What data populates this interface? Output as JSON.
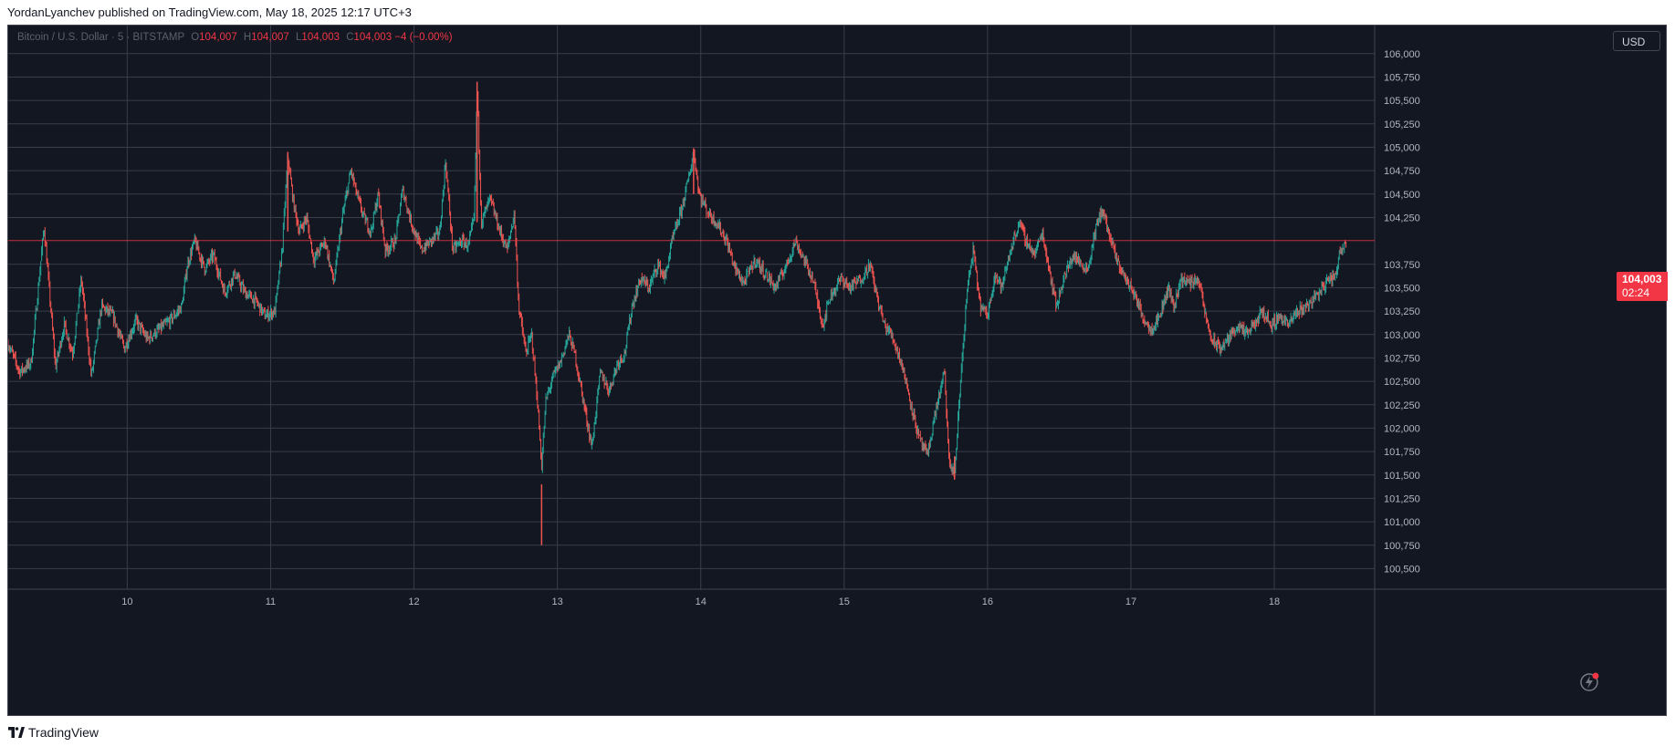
{
  "header": {
    "published_text": "YordanLyanchev published on TradingView.com, May 18, 2025 12:17 UTC+3"
  },
  "legend": {
    "symbol": "Bitcoin / U.S. Dollar · 5 · BITSTAMP",
    "open_key": "O",
    "open": "104,007",
    "high_key": "H",
    "high": "104,007",
    "low_key": "L",
    "low": "104,003",
    "close_key": "C",
    "close": "104,003",
    "change": "−4 (−0.00%)"
  },
  "currency_button": "USD",
  "last_price_tag": {
    "price": "104,003",
    "countdown": "02:24"
  },
  "footer": {
    "brand": "TradingView",
    "logo_icon": "tradingview-logo-icon"
  },
  "icons": {
    "bolt": "lightning-bolt-icon"
  },
  "colors": {
    "background": "#131722",
    "up": "#26a69a",
    "down": "#ef5350",
    "grid": "#3a3e4a",
    "price_line": "#f23645",
    "text": "#b2b5be"
  },
  "chart_data": {
    "type": "candlestick",
    "title": "Bitcoin / U.S. Dollar · 5 · BITSTAMP",
    "xlabel": "",
    "ylabel": "",
    "x_ticks": [
      "10",
      "11",
      "12",
      "13",
      "14",
      "15",
      "16",
      "17",
      "18"
    ],
    "x_tick_days": [
      10,
      11,
      12,
      13,
      14,
      15,
      16,
      17,
      18
    ],
    "y_ticks": [
      "106,000",
      "105,750",
      "105,500",
      "105,250",
      "105,000",
      "104,750",
      "104,500",
      "104,250",
      "103,750",
      "103,500",
      "103,250",
      "103,000",
      "102,750",
      "102,500",
      "102,250",
      "102,000",
      "101,750",
      "101,500",
      "101,250",
      "101,000",
      "100,750",
      "100,500"
    ],
    "y_tick_values": [
      106000,
      105750,
      105500,
      105250,
      105000,
      104750,
      104500,
      104250,
      103750,
      103500,
      103250,
      103000,
      102750,
      102500,
      102250,
      102000,
      101750,
      101500,
      101250,
      101000,
      100750,
      100500
    ],
    "xlim": [
      9.17,
      18.7
    ],
    "ylim": [
      100280,
      106300
    ],
    "last_price": 104003,
    "grid": true,
    "price_path": [
      [
        9.17,
        102900
      ],
      [
        9.25,
        102600
      ],
      [
        9.33,
        102700
      ],
      [
        9.42,
        104150
      ],
      [
        9.5,
        102650
      ],
      [
        9.56,
        103100
      ],
      [
        9.62,
        102800
      ],
      [
        9.68,
        103600
      ],
      [
        9.75,
        102550
      ],
      [
        9.82,
        103300
      ],
      [
        9.9,
        103200
      ],
      [
        9.98,
        102850
      ],
      [
        10.06,
        103150
      ],
      [
        10.14,
        102950
      ],
      [
        10.22,
        103050
      ],
      [
        10.3,
        103150
      ],
      [
        10.38,
        103300
      ],
      [
        10.42,
        103750
      ],
      [
        10.47,
        104000
      ],
      [
        10.54,
        103700
      ],
      [
        10.6,
        103850
      ],
      [
        10.68,
        103450
      ],
      [
        10.75,
        103650
      ],
      [
        10.82,
        103450
      ],
      [
        10.9,
        103350
      ],
      [
        10.96,
        103200
      ],
      [
        11.03,
        103250
      ],
      [
        11.08,
        103900
      ],
      [
        11.12,
        104900
      ],
      [
        11.16,
        104400
      ],
      [
        11.2,
        104100
      ],
      [
        11.25,
        104250
      ],
      [
        11.3,
        103800
      ],
      [
        11.38,
        104000
      ],
      [
        11.44,
        103550
      ],
      [
        11.5,
        104250
      ],
      [
        11.56,
        104750
      ],
      [
        11.6,
        104500
      ],
      [
        11.65,
        104250
      ],
      [
        11.7,
        104100
      ],
      [
        11.75,
        104500
      ],
      [
        11.8,
        103900
      ],
      [
        11.87,
        104000
      ],
      [
        11.92,
        104550
      ],
      [
        11.98,
        104200
      ],
      [
        12.05,
        103900
      ],
      [
        12.12,
        104000
      ],
      [
        12.18,
        104100
      ],
      [
        12.22,
        104850
      ],
      [
        12.27,
        103900
      ],
      [
        12.33,
        104000
      ],
      [
        12.38,
        103950
      ],
      [
        12.42,
        104250
      ],
      [
        12.44,
        105650
      ],
      [
        12.47,
        104200
      ],
      [
        12.53,
        104450
      ],
      [
        12.6,
        104100
      ],
      [
        12.65,
        103900
      ],
      [
        12.7,
        104300
      ],
      [
        12.73,
        103300
      ],
      [
        12.78,
        102800
      ],
      [
        12.82,
        103000
      ],
      [
        12.86,
        102300
      ],
      [
        12.89,
        101600
      ],
      [
        12.92,
        102300
      ],
      [
        12.97,
        102550
      ],
      [
        13.02,
        102700
      ],
      [
        13.08,
        103000
      ],
      [
        13.12,
        102800
      ],
      [
        13.18,
        102300
      ],
      [
        13.24,
        101800
      ],
      [
        13.3,
        102600
      ],
      [
        13.36,
        102400
      ],
      [
        13.42,
        102700
      ],
      [
        13.47,
        102800
      ],
      [
        13.52,
        103300
      ],
      [
        13.58,
        103600
      ],
      [
        13.64,
        103500
      ],
      [
        13.7,
        103750
      ],
      [
        13.75,
        103600
      ],
      [
        13.8,
        104000
      ],
      [
        13.86,
        104300
      ],
      [
        13.92,
        104700
      ],
      [
        13.95,
        104950
      ],
      [
        13.99,
        104500
      ],
      [
        14.05,
        104300
      ],
      [
        14.11,
        104200
      ],
      [
        14.18,
        104000
      ],
      [
        14.24,
        103700
      ],
      [
        14.3,
        103550
      ],
      [
        14.38,
        103800
      ],
      [
        14.45,
        103650
      ],
      [
        14.52,
        103500
      ],
      [
        14.6,
        103750
      ],
      [
        14.66,
        104000
      ],
      [
        14.72,
        103800
      ],
      [
        14.78,
        103600
      ],
      [
        14.85,
        103100
      ],
      [
        14.9,
        103400
      ],
      [
        14.98,
        103600
      ],
      [
        15.04,
        103500
      ],
      [
        15.12,
        103600
      ],
      [
        15.18,
        103750
      ],
      [
        15.23,
        103400
      ],
      [
        15.28,
        103100
      ],
      [
        15.33,
        103000
      ],
      [
        15.4,
        102700
      ],
      [
        15.46,
        102300
      ],
      [
        15.52,
        101900
      ],
      [
        15.58,
        101700
      ],
      [
        15.64,
        102200
      ],
      [
        15.7,
        102600
      ],
      [
        15.73,
        101650
      ],
      [
        15.77,
        101500
      ],
      [
        15.82,
        102700
      ],
      [
        15.86,
        103500
      ],
      [
        15.9,
        103900
      ],
      [
        15.95,
        103300
      ],
      [
        16.0,
        103200
      ],
      [
        16.05,
        103650
      ],
      [
        16.1,
        103500
      ],
      [
        16.16,
        103900
      ],
      [
        16.22,
        104200
      ],
      [
        16.27,
        104000
      ],
      [
        16.33,
        103850
      ],
      [
        16.38,
        104100
      ],
      [
        16.43,
        103700
      ],
      [
        16.48,
        103300
      ],
      [
        16.53,
        103600
      ],
      [
        16.6,
        103850
      ],
      [
        16.65,
        103750
      ],
      [
        16.7,
        103700
      ],
      [
        16.75,
        104100
      ],
      [
        16.8,
        104350
      ],
      [
        16.85,
        104050
      ],
      [
        16.9,
        103800
      ],
      [
        16.96,
        103600
      ],
      [
        17.02,
        103450
      ],
      [
        17.08,
        103200
      ],
      [
        17.14,
        103050
      ],
      [
        17.2,
        103200
      ],
      [
        17.26,
        103500
      ],
      [
        17.3,
        103300
      ],
      [
        17.35,
        103600
      ],
      [
        17.41,
        103550
      ],
      [
        17.47,
        103600
      ],
      [
        17.52,
        103200
      ],
      [
        17.56,
        102950
      ],
      [
        17.62,
        102850
      ],
      [
        17.68,
        102950
      ],
      [
        17.74,
        103100
      ],
      [
        17.8,
        103000
      ],
      [
        17.86,
        103100
      ],
      [
        17.92,
        103250
      ],
      [
        17.98,
        103100
      ],
      [
        18.04,
        103200
      ],
      [
        18.1,
        103100
      ],
      [
        18.16,
        103250
      ],
      [
        18.22,
        103300
      ],
      [
        18.28,
        103400
      ],
      [
        18.34,
        103500
      ],
      [
        18.38,
        103600
      ],
      [
        18.42,
        103600
      ],
      [
        18.46,
        103900
      ],
      [
        18.5,
        104003
      ]
    ]
  }
}
